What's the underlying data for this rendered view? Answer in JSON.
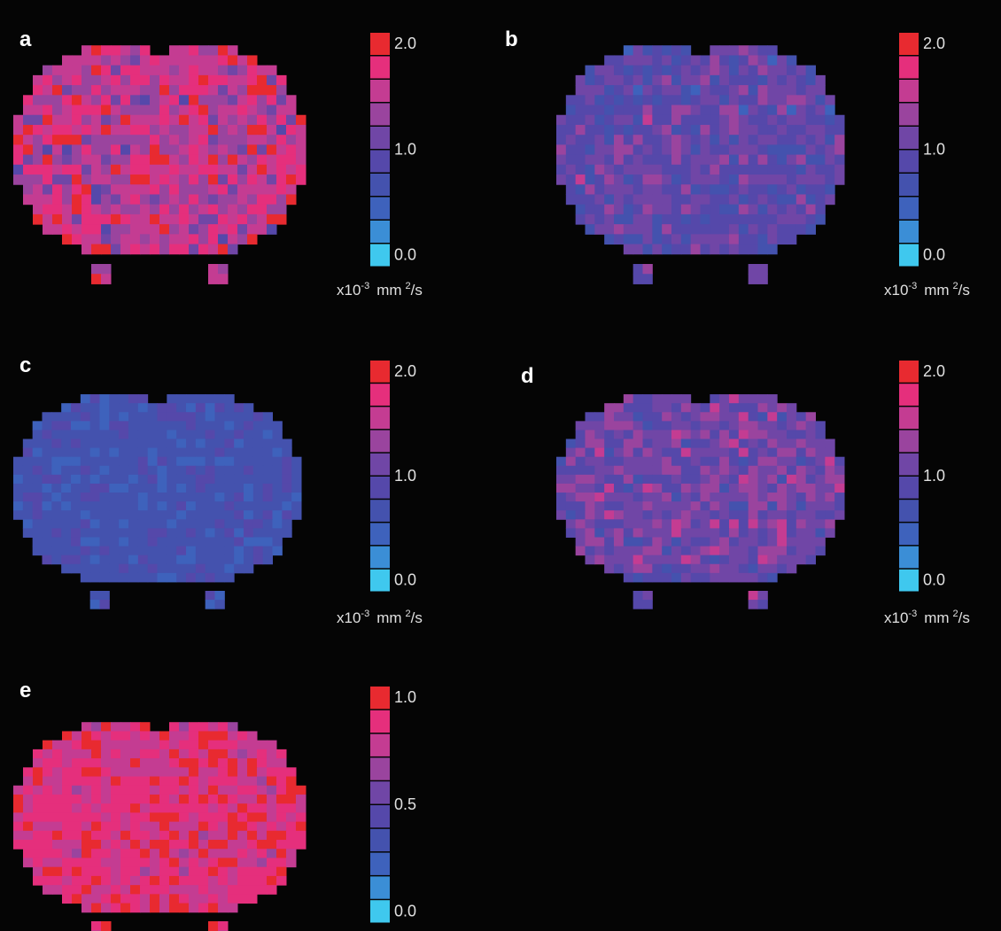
{
  "panels": [
    {
      "label": "a",
      "ticks": [
        "2.0",
        "1.0",
        "0.0"
      ],
      "unit": {
        "base": "x10",
        "exp": "-3",
        "mid": "mm",
        "exp2": "2",
        "tail": "/s"
      }
    },
    {
      "label": "b",
      "ticks": [
        "2.0",
        "1.0",
        "0.0"
      ],
      "unit": {
        "base": "x10",
        "exp": "-3",
        "mid": "mm",
        "exp2": "2",
        "tail": "/s"
      }
    },
    {
      "label": "c",
      "ticks": [
        "2.0",
        "1.0",
        "0.0"
      ],
      "unit": {
        "base": "x10",
        "exp": "-3",
        "mid": "mm",
        "exp2": "2",
        "tail": "/s"
      }
    },
    {
      "label": "d",
      "ticks": [
        "2.0",
        "1.0",
        "0.0"
      ],
      "unit": {
        "base": "x10",
        "exp": "-3",
        "mid": "mm",
        "exp2": "2",
        "tail": "/s"
      }
    },
    {
      "label": "e",
      "ticks": [
        "1.0",
        "0.5",
        "0.0"
      ]
    }
  ],
  "colorbar_colors": [
    "#3fc8ee",
    "#3b8ed6",
    "#3e62bc",
    "#4452ae",
    "#5548aa",
    "#7046a6",
    "#9a449e",
    "#c43c92",
    "#e52f7c",
    "#e82a30"
  ]
}
